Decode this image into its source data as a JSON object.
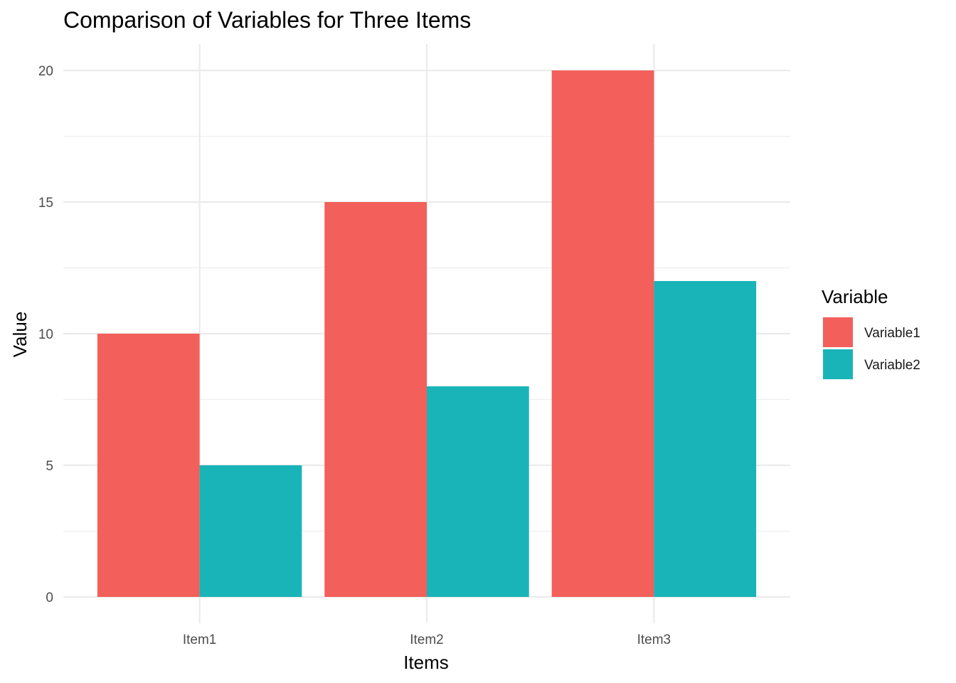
{
  "chart_data": {
    "type": "bar",
    "title": "Comparison of Variables for Three Items",
    "xlabel": "Items",
    "ylabel": "Value",
    "categories": [
      "Item1",
      "Item2",
      "Item3"
    ],
    "series": [
      {
        "name": "Variable1",
        "values": [
          10,
          15,
          20
        ],
        "color": "#f35f5a"
      },
      {
        "name": "Variable2",
        "values": [
          5,
          8,
          12
        ],
        "color": "#19b4b8"
      }
    ],
    "ylim": [
      -1,
      21
    ],
    "yticks": [
      0,
      5,
      10,
      15,
      20
    ],
    "grid": true,
    "legend": {
      "title": "Variable",
      "position": "right"
    }
  }
}
